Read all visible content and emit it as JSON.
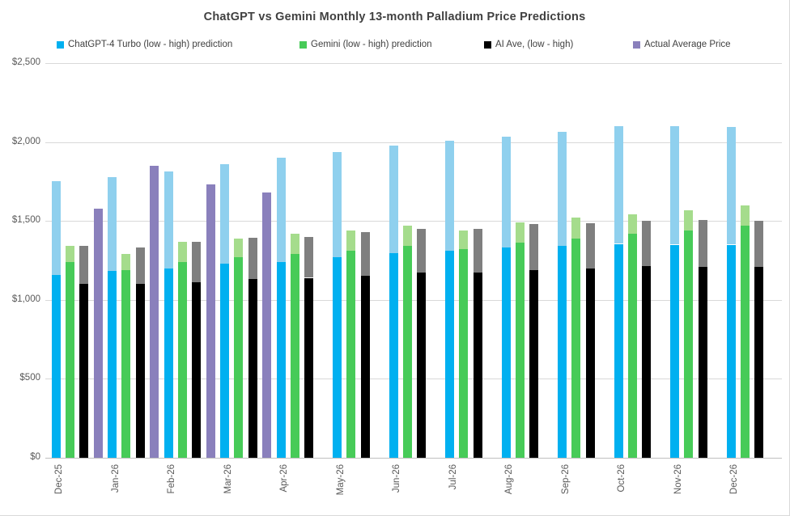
{
  "chart_title": "ChatGPT vs Gemini Monthly 13-month Palladium Price Predictions",
  "legend": {
    "items": [
      {
        "label": "ChatGPT-4 Turbo (low - high) prediction",
        "color": "#00B0F0",
        "light_color": "#8FD0EE"
      },
      {
        "label": "Gemini (low - high) prediction",
        "color": "#47CB58",
        "light_color": "#A5DC8C"
      },
      {
        "label": "AI Ave, (low - high)",
        "color": "#000000",
        "light_color": "#7F7F7F"
      },
      {
        "label": "Actual Average Price",
        "color": "#8A80BC"
      }
    ]
  },
  "chart_data": {
    "type": "bar",
    "title": "ChatGPT vs Gemini Monthly 13-month Palladium Price Predictions",
    "categories": [
      "Dec-25",
      "Jan-26",
      "Feb-26",
      "Mar-26",
      "Apr-26",
      "May-26",
      "Jun-26",
      "Jul-26",
      "Aug-26",
      "Sep-26",
      "Oct-26",
      "Nov-26",
      "Dec-26"
    ],
    "series": [
      {
        "name": "ChatGPT-4 Turbo (low - high) prediction",
        "kind": "range",
        "low": [
          1160,
          1185,
          1200,
          1230,
          1240,
          1270,
          1295,
          1310,
          1330,
          1340,
          1355,
          1350,
          1350
        ],
        "high": [
          1750,
          1780,
          1815,
          1860,
          1900,
          1935,
          1980,
          2010,
          2035,
          2065,
          2100,
          2100,
          2095
        ],
        "color_low": "#00B0F0",
        "color_high": "#8FD0EE"
      },
      {
        "name": "Gemini (low - high) prediction",
        "kind": "range",
        "low": [
          1240,
          1190,
          1240,
          1270,
          1290,
          1310,
          1340,
          1320,
          1365,
          1390,
          1420,
          1440,
          1470
        ],
        "high": [
          1340,
          1290,
          1370,
          1390,
          1420,
          1440,
          1470,
          1440,
          1490,
          1520,
          1540,
          1570,
          1600
        ],
        "color_low": "#47CB58",
        "color_high": "#A5DC8C"
      },
      {
        "name": "AI Ave, (low - high)",
        "kind": "range",
        "low": [
          1100,
          1100,
          1110,
          1130,
          1140,
          1155,
          1175,
          1175,
          1190,
          1200,
          1215,
          1210,
          1210
        ],
        "high": [
          1340,
          1330,
          1370,
          1395,
          1400,
          1430,
          1450,
          1450,
          1480,
          1485,
          1500,
          1505,
          1500
        ],
        "color_low": "#000000",
        "color_high": "#7F7F7F"
      },
      {
        "name": "Actual Average Price",
        "kind": "single",
        "values": [
          1580,
          1850,
          1730,
          1680,
          null,
          null,
          null,
          null,
          null,
          null,
          null,
          null,
          null
        ],
        "color": "#8A80BC"
      }
    ],
    "ylim": [
      0,
      2500
    ],
    "y_ticks": [
      0,
      500,
      1000,
      1500,
      2000,
      2500
    ],
    "y_tick_labels": [
      "$0",
      "$500",
      "$1,000",
      "$1,500",
      "$2,000",
      "$2,500"
    ],
    "grid": true,
    "legend_position": "top"
  }
}
